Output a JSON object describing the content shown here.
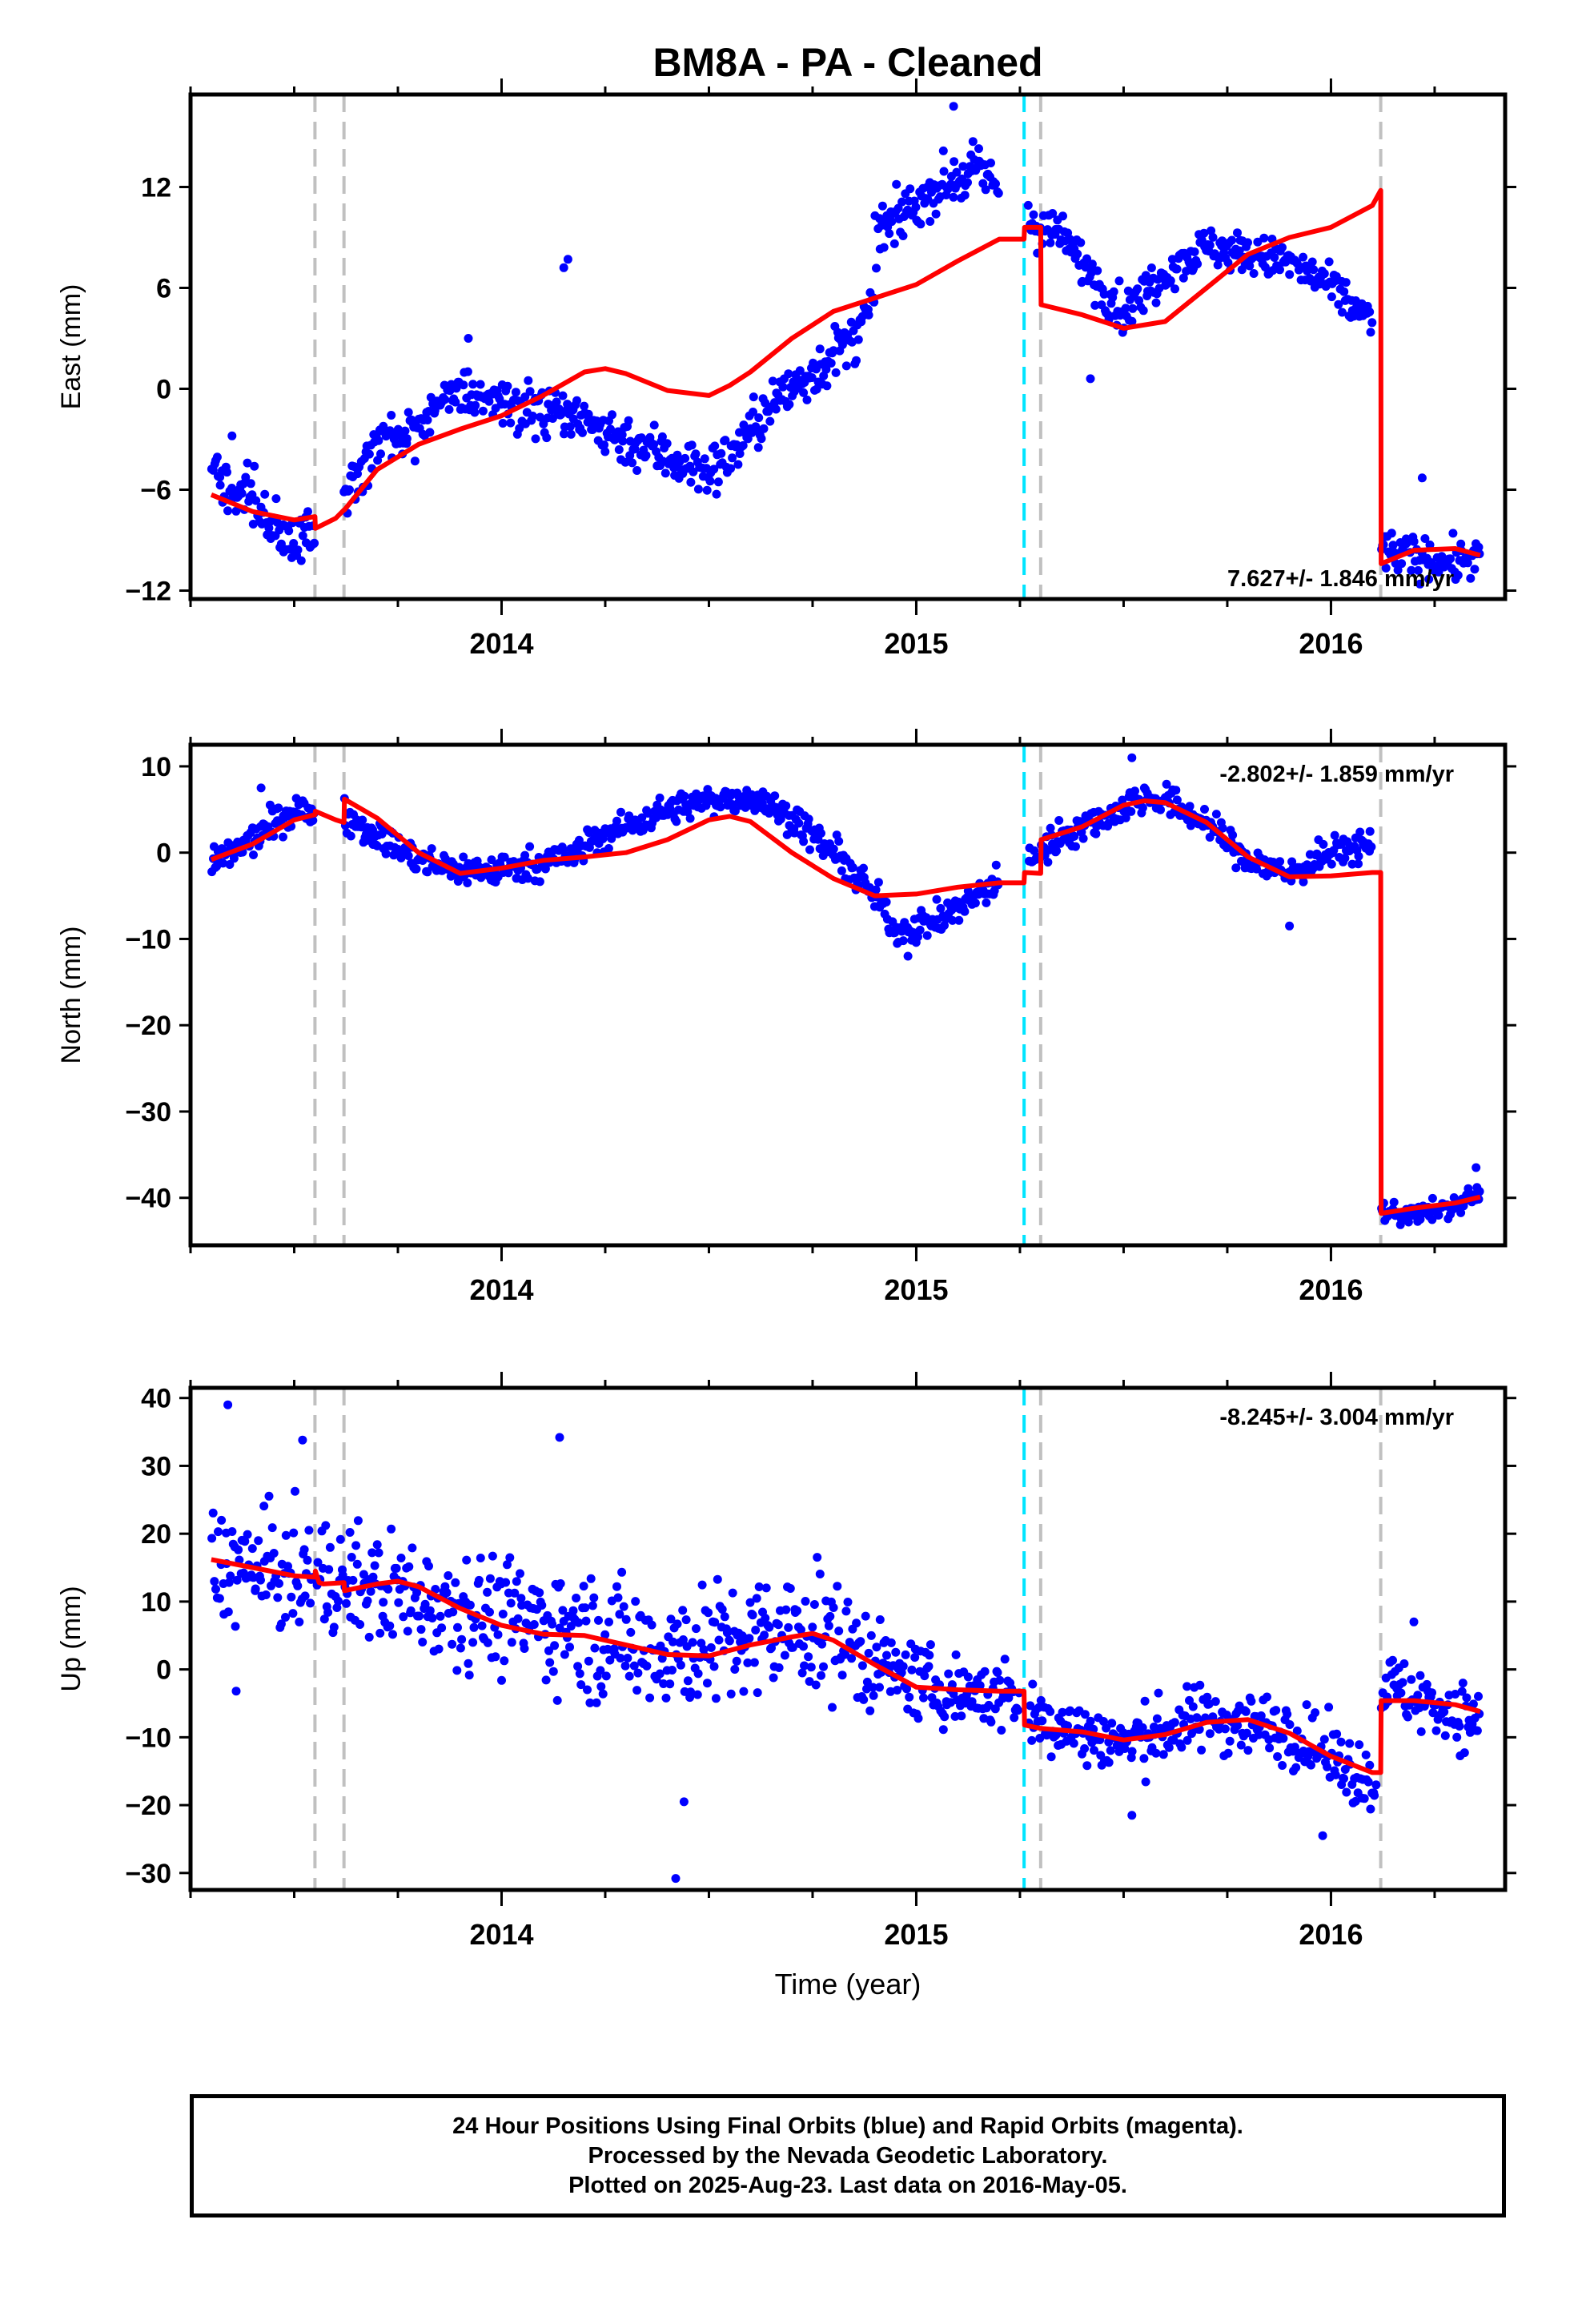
{
  "figure": {
    "title": "BM8A  - PA - Cleaned",
    "xlabel": "Time (year)"
  },
  "colors": {
    "points": "#0000ff",
    "model": "#ff0000",
    "event_gray": "#c0c0c0",
    "event_cyan": "#00e5ff"
  },
  "footer": {
    "line1": "24 Hour Positions Using Final Orbits (blue) and Rapid Orbits (magenta).",
    "line2": "Processed by the Nevada Geodetic Laboratory.",
    "line3": "Plotted on 2025-Aug-23. Last data on 2016-May-05."
  },
  "chart_data": [
    {
      "type": "scatter",
      "ylabel": "East (mm)",
      "rate_label": "7.627+/- 1.846 mm/yr",
      "rate_label_placement": "bottom-right",
      "xlim": [
        2013.25,
        2016.42
      ],
      "ylim": [
        -12.5,
        17.5
      ],
      "yticks": [
        -12,
        -6,
        0,
        6,
        12
      ],
      "xticks": [
        2014,
        2015,
        2016
      ],
      "x_minor_step": 0.25,
      "events_gray": [
        2013.55,
        2013.62,
        2015.3,
        2016.12
      ],
      "events_cyan": [
        2015.26
      ],
      "model": {
        "x": [
          2013.3,
          2013.4,
          2013.5,
          2013.55,
          2013.551,
          2013.6,
          2013.62,
          2013.621,
          2013.7,
          2013.8,
          2013.9,
          2014.0,
          2014.1,
          2014.2,
          2014.25,
          2014.3,
          2014.4,
          2014.5,
          2014.55,
          2014.6,
          2014.7,
          2014.8,
          2014.9,
          2015.0,
          2015.1,
          2015.2,
          2015.26,
          2015.261,
          2015.3,
          2015.301,
          2015.4,
          2015.5,
          2015.6,
          2015.7,
          2015.8,
          2015.9,
          2016.0,
          2016.1,
          2016.12,
          2016.121,
          2016.2,
          2016.3,
          2016.36
        ],
        "y": [
          -6.3,
          -7.3,
          -7.8,
          -7.6,
          -8.3,
          -7.7,
          -7.2,
          -7.2,
          -4.8,
          -3.3,
          -2.4,
          -1.6,
          -0.4,
          1.0,
          1.2,
          0.9,
          -0.1,
          -0.4,
          0.2,
          1.0,
          3.0,
          4.6,
          5.4,
          6.2,
          7.6,
          8.9,
          8.9,
          9.6,
          9.6,
          5.0,
          4.4,
          3.6,
          4.0,
          6.0,
          8.0,
          9.0,
          9.6,
          10.9,
          11.8,
          -10.4,
          -9.6,
          -9.5,
          -9.9
        ]
      },
      "points": {
        "segments": [
          {
            "start": 2013.3,
            "end": 2013.55,
            "x": [
              2013.3,
              2013.4,
              2013.48,
              2013.55
            ],
            "y": [
              -5.0,
              -6.5,
              -9.0,
              -8.5
            ],
            "noise": 1.3
          },
          {
            "start": 2013.62,
            "end": 2014.0,
            "x": [
              2013.62,
              2013.7,
              2013.8,
              2013.9,
              2014.0
            ],
            "y": [
              -6.0,
              -3.5,
              -2.0,
              0.0,
              -1.0
            ],
            "noise": 1.2
          },
          {
            "start": 2014.0,
            "end": 2014.55,
            "x": [
              2014.0,
              2014.1,
              2014.2,
              2014.3,
              2014.4,
              2014.5,
              2014.55
            ],
            "y": [
              -1.0,
              -1.5,
              -2.0,
              -3.0,
              -4.0,
              -5.0,
              -4.0
            ],
            "noise": 1.3
          },
          {
            "start": 2014.55,
            "end": 2014.9,
            "x": [
              2014.55,
              2014.65,
              2014.75,
              2014.85,
              2014.9
            ],
            "y": [
              -4.0,
              -1.0,
              1.0,
              3.0,
              5.0
            ],
            "noise": 1.3
          },
          {
            "start": 2014.9,
            "end": 2015.2,
            "x": [
              2014.9,
              2014.95,
              2015.05,
              2015.15,
              2015.2
            ],
            "y": [
              9.0,
              10.0,
              12.0,
              13.0,
              12.0
            ],
            "noise": 1.2
          },
          {
            "start": 2015.27,
            "end": 2015.5,
            "x": [
              2015.27,
              2015.35,
              2015.45,
              2015.5
            ],
            "y": [
              10.0,
              9.0,
              6.0,
              4.5
            ],
            "noise": 1.1
          },
          {
            "start": 2015.5,
            "end": 2016.1,
            "x": [
              2015.5,
              2015.6,
              2015.7,
              2015.8,
              2015.9,
              2016.0,
              2016.1
            ],
            "y": [
              4.5,
              7.0,
              8.5,
              8.0,
              7.5,
              6.0,
              4.0
            ],
            "noise": 1.0
          },
          {
            "start": 2016.12,
            "end": 2016.36,
            "x": [
              2016.12,
              2016.2,
              2016.3,
              2016.36
            ],
            "y": [
              -9.5,
              -10.0,
              -10.3,
              -10.0
            ],
            "noise": 1.0
          }
        ],
        "outliers": [
          [
            2013.35,
            -2.8
          ],
          [
            2013.92,
            3.0
          ],
          [
            2014.16,
            7.7
          ],
          [
            2014.15,
            7.2
          ],
          [
            2015.09,
            16.8
          ],
          [
            2015.42,
            0.6
          ],
          [
            2016.22,
            -5.3
          ]
        ]
      }
    },
    {
      "type": "scatter",
      "ylabel": "North (mm)",
      "rate_label": "-2.802+/- 1.859 mm/yr",
      "rate_label_placement": "top-right",
      "xlim": [
        2013.25,
        2016.42
      ],
      "ylim": [
        -45.5,
        12.5
      ],
      "yticks": [
        -40,
        -30,
        -20,
        -10,
        0,
        10
      ],
      "xticks": [
        2014,
        2015,
        2016
      ],
      "x_minor_step": 0.25,
      "events_gray": [
        2013.55,
        2013.62,
        2015.3,
        2016.12
      ],
      "events_cyan": [
        2015.26
      ],
      "model": {
        "x": [
          2013.3,
          2013.4,
          2013.5,
          2013.55,
          2013.551,
          2013.6,
          2013.62,
          2013.621,
          2013.7,
          2013.8,
          2013.9,
          2014.0,
          2014.1,
          2014.2,
          2014.3,
          2014.4,
          2014.5,
          2014.55,
          2014.6,
          2014.7,
          2014.8,
          2014.9,
          2015.0,
          2015.1,
          2015.2,
          2015.26,
          2015.261,
          2015.3,
          2015.301,
          2015.4,
          2015.5,
          2015.55,
          2015.6,
          2015.7,
          2015.8,
          2015.9,
          2016.0,
          2016.1,
          2016.12,
          2016.121,
          2016.2,
          2016.3,
          2016.36
        ],
        "y": [
          -0.8,
          1.0,
          3.8,
          4.4,
          4.8,
          3.8,
          3.5,
          6.2,
          4.0,
          0.0,
          -2.4,
          -1.8,
          -0.9,
          -0.5,
          0.0,
          1.5,
          3.8,
          4.2,
          3.6,
          0.0,
          -3.0,
          -5.0,
          -4.8,
          -4.0,
          -3.5,
          -3.5,
          -2.3,
          -2.4,
          1.5,
          3.0,
          5.5,
          6.0,
          5.8,
          3.5,
          -0.5,
          -2.8,
          -2.7,
          -2.3,
          -2.3,
          -41.8,
          -41.2,
          -40.6,
          -39.9
        ]
      },
      "points": {
        "segments": [
          {
            "start": 2013.3,
            "end": 2013.55,
            "x": [
              2013.3,
              2013.4,
              2013.5,
              2013.55
            ],
            "y": [
              -1.5,
              1.5,
              5.0,
              4.5
            ],
            "noise": 1.5
          },
          {
            "start": 2013.62,
            "end": 2013.9,
            "x": [
              2013.62,
              2013.7,
              2013.8,
              2013.9
            ],
            "y": [
              4.5,
              2.0,
              -1.0,
              -2.0
            ],
            "noise": 1.5
          },
          {
            "start": 2013.9,
            "end": 2014.2,
            "x": [
              2013.9,
              2014.0,
              2014.1,
              2014.2
            ],
            "y": [
              -2.0,
              -2.0,
              -1.0,
              0.0
            ],
            "noise": 1.5
          },
          {
            "start": 2014.2,
            "end": 2014.7,
            "x": [
              2014.2,
              2014.3,
              2014.4,
              2014.5,
              2014.6,
              2014.7
            ],
            "y": [
              1.0,
              3.0,
              5.0,
              6.0,
              6.5,
              4.0
            ],
            "noise": 1.4
          },
          {
            "start": 2014.7,
            "end": 2015.2,
            "x": [
              2014.7,
              2014.8,
              2014.9,
              2014.95,
              2015.05,
              2015.15,
              2015.2
            ],
            "y": [
              4.0,
              0.0,
              -5.0,
              -9.0,
              -8.0,
              -5.0,
              -3.0
            ],
            "noise": 1.5
          },
          {
            "start": 2015.27,
            "end": 2015.6,
            "x": [
              2015.27,
              2015.35,
              2015.45,
              2015.55,
              2015.6
            ],
            "y": [
              -1.0,
              2.0,
              4.0,
              6.5,
              6.0
            ],
            "noise": 1.5
          },
          {
            "start": 2015.6,
            "end": 2016.1,
            "x": [
              2015.6,
              2015.7,
              2015.8,
              2015.9,
              2016.0,
              2016.1
            ],
            "y": [
              6.0,
              3.5,
              -1.0,
              -2.5,
              0.0,
              1.0
            ],
            "noise": 1.5
          },
          {
            "start": 2016.12,
            "end": 2016.36,
            "x": [
              2016.12,
              2016.2,
              2016.3,
              2016.36
            ],
            "y": [
              -41.5,
              -42.0,
              -41.0,
              -39.5
            ],
            "noise": 1.0
          }
        ],
        "outliers": [
          [
            2015.52,
            11.0
          ],
          [
            2015.9,
            -8.5
          ],
          [
            2016.35,
            -36.5
          ],
          [
            2014.98,
            -12.0
          ],
          [
            2013.42,
            7.5
          ]
        ]
      }
    },
    {
      "type": "scatter",
      "ylabel": "Up (mm)",
      "rate_label": "-8.245+/- 3.004 mm/yr",
      "rate_label_placement": "top-right",
      "xlim": [
        2013.25,
        2016.42
      ],
      "ylim": [
        -32.5,
        41.5
      ],
      "yticks": [
        -30,
        -20,
        -10,
        0,
        10,
        20,
        30,
        40
      ],
      "xticks": [
        2014,
        2015,
        2016
      ],
      "x_minor_step": 0.25,
      "events_gray": [
        2013.55,
        2013.62,
        2015.3,
        2016.12
      ],
      "events_cyan": [
        2015.26
      ],
      "model": {
        "x": [
          2013.3,
          2013.4,
          2013.5,
          2013.55,
          2013.551,
          2013.56,
          2013.57,
          2013.62,
          2013.621,
          2013.7,
          2013.75,
          2013.8,
          2013.9,
          2014.0,
          2014.1,
          2014.2,
          2014.3,
          2014.4,
          2014.5,
          2014.6,
          2014.7,
          2014.75,
          2014.8,
          2014.9,
          2015.0,
          2015.1,
          2015.2,
          2015.26,
          2015.261,
          2015.3,
          2015.4,
          2015.5,
          2015.6,
          2015.7,
          2015.8,
          2015.9,
          2016.0,
          2016.1,
          2016.12,
          2016.121,
          2016.2,
          2016.3,
          2016.36
        ],
        "y": [
          16.2,
          15.0,
          13.8,
          13.6,
          14.5,
          12.8,
          12.6,
          12.8,
          11.6,
          12.6,
          13.0,
          12.2,
          9.0,
          6.5,
          5.2,
          5.0,
          3.6,
          2.2,
          2.0,
          3.6,
          4.8,
          5.3,
          4.3,
          0.7,
          -2.6,
          -3.0,
          -3.2,
          -3.2,
          -8.2,
          -8.7,
          -9.2,
          -10.4,
          -9.6,
          -7.8,
          -7.4,
          -9.4,
          -12.8,
          -15.2,
          -15.2,
          -4.6,
          -4.6,
          -5.2,
          -6.2
        ]
      },
      "points": {
        "segments": [
          {
            "start": 2013.3,
            "end": 2013.62,
            "x": [
              2013.3,
              2013.45,
              2013.62
            ],
            "y": [
              16.0,
              14.0,
              13.0
            ],
            "noise": 7.0
          },
          {
            "start": 2013.62,
            "end": 2014.2,
            "x": [
              2013.62,
              2013.8,
              2014.0,
              2014.2
            ],
            "y": [
              13.0,
              11.0,
              8.0,
              6.0
            ],
            "noise": 7.0
          },
          {
            "start": 2014.2,
            "end": 2014.9,
            "x": [
              2014.2,
              2014.4,
              2014.6,
              2014.75,
              2014.9
            ],
            "y": [
              5.0,
              3.0,
              4.0,
              6.0,
              2.0
            ],
            "noise": 7.5
          },
          {
            "start": 2014.9,
            "end": 2015.25,
            "x": [
              2014.9,
              2015.05,
              2015.25
            ],
            "y": [
              1.0,
              -3.0,
              -4.0
            ],
            "noise": 4.5
          },
          {
            "start": 2015.27,
            "end": 2016.11,
            "x": [
              2015.27,
              2015.5,
              2015.7,
              2015.9,
              2016.11
            ],
            "y": [
              -7.0,
              -11.0,
              -7.0,
              -9.0,
              -17.0
            ],
            "noise": 4.0
          },
          {
            "start": 2016.12,
            "end": 2016.36,
            "x": [
              2016.12,
              2016.24,
              2016.36
            ],
            "y": [
              -2.0,
              -5.0,
              -8.0
            ],
            "noise": 4.0
          }
        ],
        "outliers": [
          [
            2013.34,
            39.0
          ],
          [
            2013.52,
            33.8
          ],
          [
            2014.14,
            34.2
          ],
          [
            2014.42,
            -30.8
          ],
          [
            2014.44,
            -19.5
          ],
          [
            2013.36,
            -3.2
          ],
          [
            2015.52,
            -21.5
          ],
          [
            2015.98,
            -24.5
          ],
          [
            2016.2,
            7.0
          ]
        ]
      }
    }
  ]
}
